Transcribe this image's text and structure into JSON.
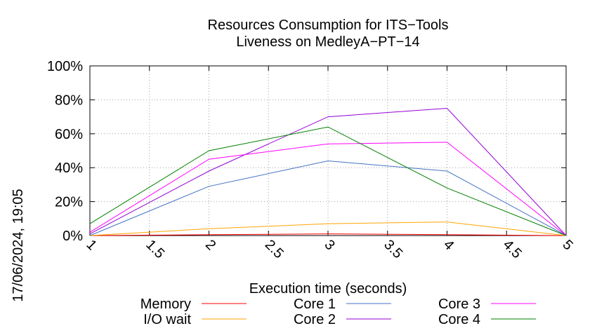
{
  "chart_data": {
    "type": "line",
    "title": "Resources Consumption for ITS−Tools",
    "subtitle": "Liveness on MedleyA−PT−14",
    "xlabel": "Execution time (seconds)",
    "ylabel": "",
    "timestamp": "17/06/2024, 19:05",
    "xlim": [
      1,
      5
    ],
    "ylim": [
      0,
      100
    ],
    "x_ticks": [
      1,
      1.5,
      2,
      2.5,
      3,
      3.5,
      4,
      4.5,
      5
    ],
    "x_tick_labels": [
      "1",
      "1.5",
      "2",
      "2.5",
      "3",
      "3.5",
      "4",
      "4.5",
      "5"
    ],
    "y_ticks": [
      0,
      20,
      40,
      60,
      80,
      100
    ],
    "y_tick_labels": [
      "0%",
      "20%",
      "40%",
      "60%",
      "80%",
      "100%"
    ],
    "grid": true,
    "legend_position": "bottom",
    "x": [
      1,
      2,
      3,
      4,
      5
    ],
    "series": [
      {
        "name": "Memory",
        "color": "#ff0000",
        "values": [
          0,
          0.5,
          1,
          0.5,
          0
        ]
      },
      {
        "name": "I/O wait",
        "color": "#ffa500",
        "values": [
          0,
          4,
          7,
          8,
          0
        ]
      },
      {
        "name": "Core 1",
        "color": "#4472c4",
        "values": [
          0,
          29,
          44,
          38,
          0
        ]
      },
      {
        "name": "Core 2",
        "color": "#9400d3",
        "values": [
          1,
          38,
          70,
          75,
          0
        ]
      },
      {
        "name": "Core 3",
        "color": "#ff00ff",
        "values": [
          2,
          45,
          54,
          55,
          0
        ]
      },
      {
        "name": "Core 4",
        "color": "#008000",
        "values": [
          7,
          50,
          64,
          28,
          0
        ]
      }
    ]
  }
}
